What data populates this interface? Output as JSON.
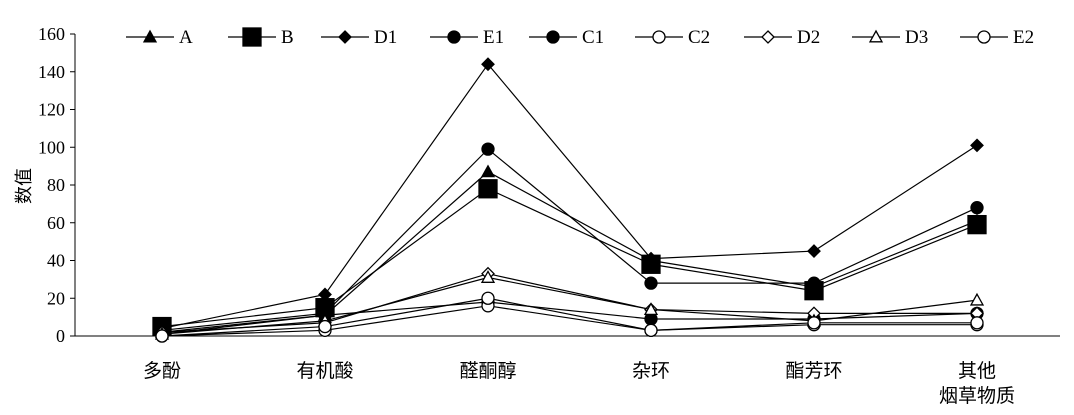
{
  "chart_data": {
    "type": "line",
    "ylabel": "数值",
    "ylim": [
      0,
      160
    ],
    "yticks": [
      0,
      20,
      40,
      60,
      80,
      100,
      120,
      140,
      160
    ],
    "legend_position": "top",
    "categories": [
      {
        "lines": [
          "多酚"
        ]
      },
      {
        "lines": [
          "有机酸"
        ]
      },
      {
        "lines": [
          "醛酮醇"
        ]
      },
      {
        "lines": [
          "杂环"
        ]
      },
      {
        "lines": [
          "酯芳环"
        ]
      },
      {
        "lines": [
          "其他",
          "烟草物质"
        ]
      }
    ],
    "series": [
      {
        "name": "A",
        "marker": "triangle",
        "filled": true,
        "size": 6,
        "values": [
          2,
          11,
          87,
          40,
          26,
          61
        ]
      },
      {
        "name": "B",
        "marker": "square",
        "filled": true,
        "size": 9,
        "values": [
          5,
          15,
          78,
          38,
          24,
          59
        ]
      },
      {
        "name": "D1",
        "marker": "diamond",
        "filled": true,
        "size": 6,
        "values": [
          4,
          22,
          144,
          41,
          45,
          101
        ]
      },
      {
        "name": "E1",
        "marker": "circle",
        "filled": true,
        "size": 6,
        "values": [
          3,
          12,
          99,
          28,
          28,
          68
        ]
      },
      {
        "name": "C1",
        "marker": "circle",
        "filled": true,
        "size": 6,
        "values": [
          1,
          11,
          18,
          9,
          9,
          12
        ]
      },
      {
        "name": "C2",
        "marker": "circle",
        "filled": false,
        "size": 6,
        "values": [
          0,
          3,
          16,
          3,
          6,
          6
        ]
      },
      {
        "name": "D2",
        "marker": "diamond",
        "filled": false,
        "size": 6,
        "values": [
          2,
          7,
          33,
          14,
          12,
          12
        ]
      },
      {
        "name": "D3",
        "marker": "triangle",
        "filled": false,
        "size": 6,
        "values": [
          1,
          8,
          31,
          14,
          8,
          19
        ]
      },
      {
        "name": "E2",
        "marker": "circle",
        "filled": false,
        "size": 6,
        "values": [
          0,
          5,
          20,
          3,
          7,
          7
        ]
      }
    ]
  }
}
